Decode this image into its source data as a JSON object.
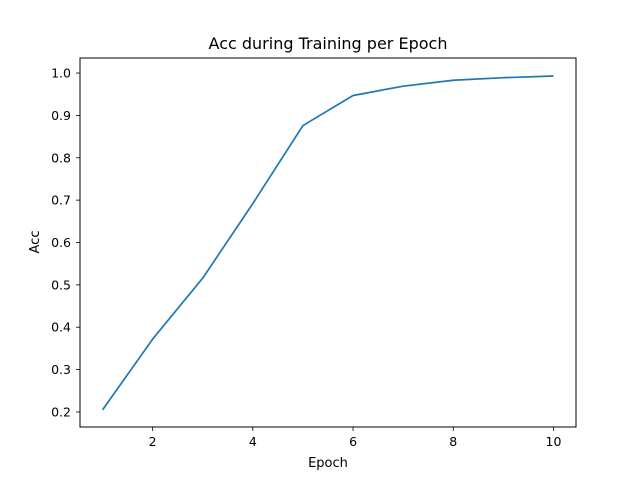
{
  "chart_data": {
    "type": "line",
    "title": "Acc during Training per Epoch",
    "xlabel": "Epoch",
    "ylabel": "Acc",
    "xlim": [
      0.55,
      10.45
    ],
    "ylim": [
      0.1645,
      1.0355
    ],
    "xticks": [
      2,
      4,
      6,
      8,
      10
    ],
    "yticks": [
      0.2,
      0.3,
      0.4,
      0.5,
      0.6,
      0.7,
      0.8,
      0.9,
      1.0
    ],
    "ytick_labels": [
      "0.2",
      "0.3",
      "0.4",
      "0.5",
      "0.6",
      "0.7",
      "0.8",
      "0.9",
      "1.0"
    ],
    "grid": false,
    "series": [
      {
        "color": "#1f77b4",
        "x": [
          1,
          2,
          3,
          4,
          5,
          6,
          7,
          8,
          9,
          10
        ],
        "y": [
          0.205,
          0.372,
          0.516,
          0.692,
          0.876,
          0.947,
          0.969,
          0.983,
          0.989,
          0.993
        ]
      }
    ]
  }
}
